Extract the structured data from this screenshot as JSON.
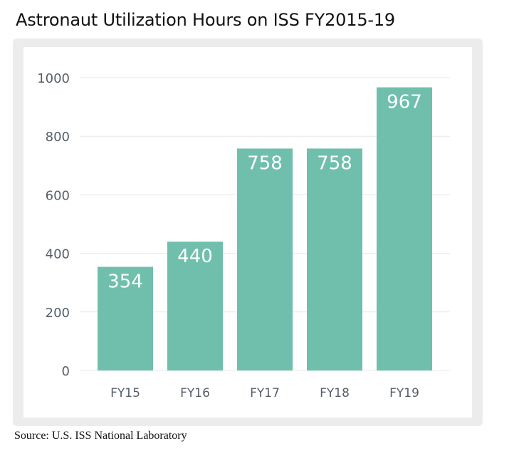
{
  "title": "Astronaut Utilization Hours on ISS FY2015-19",
  "source": "Source: U.S. ISS National Laboratory",
  "colors": {
    "bar": "#6fbfac",
    "bar_label": "#ffffff",
    "axis_text": "#555f6b",
    "grid": "#e8e8e8",
    "card_bg": "#ececec"
  },
  "chart_data": {
    "type": "bar",
    "categories": [
      "FY15",
      "FY16",
      "FY17",
      "FY18",
      "FY19"
    ],
    "values": [
      354,
      440,
      758,
      758,
      967
    ],
    "title": "Astronaut Utilization Hours on ISS FY2015-19",
    "xlabel": "",
    "ylabel": "",
    "ylim": [
      0,
      1000
    ],
    "yticks": [
      0,
      200,
      400,
      600,
      800,
      1000
    ],
    "grid": true,
    "data_labels": true
  }
}
